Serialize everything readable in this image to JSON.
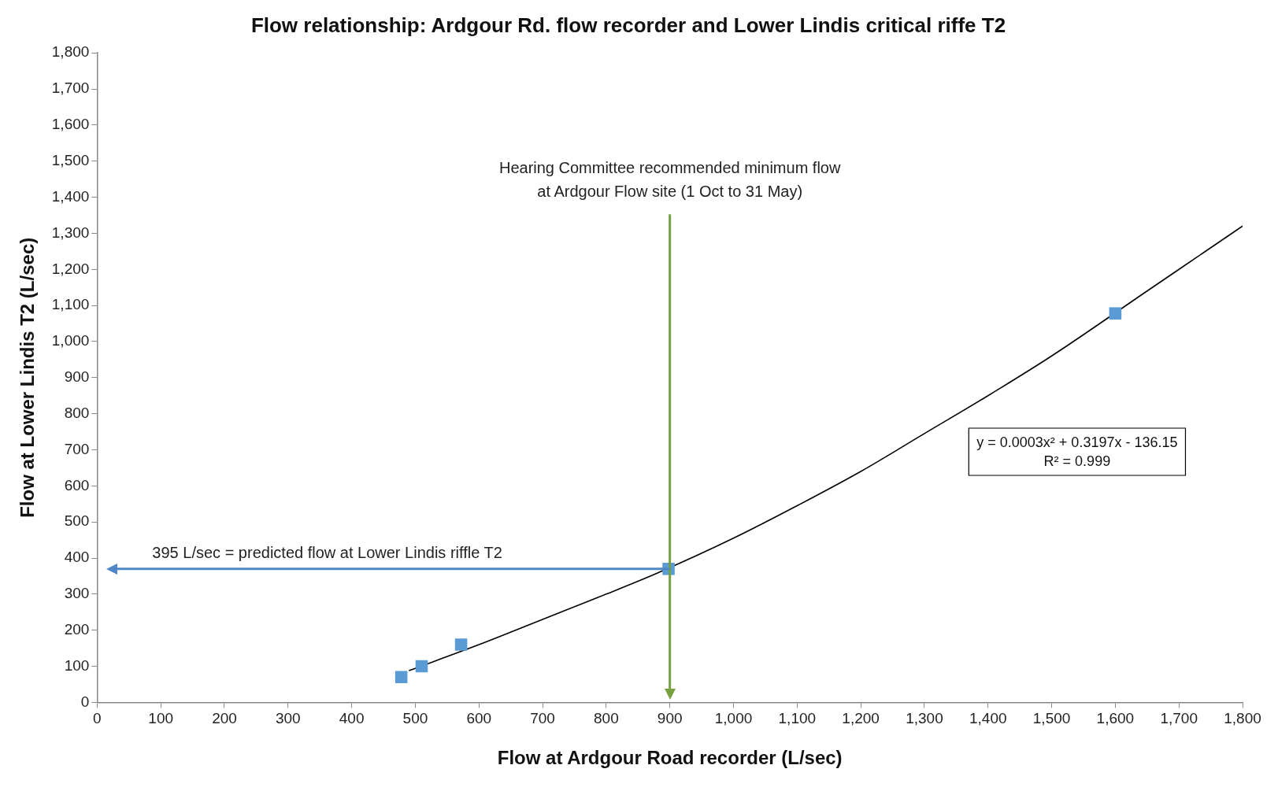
{
  "chart_data": {
    "type": "scatter",
    "title": "Flow relationship: Ardgour Rd. flow recorder and Lower Lindis critical riffe T2",
    "xlabel": "Flow at Ardgour Road recorder (L/sec)",
    "ylabel": "Flow at Lower Lindis T2 (L/sec)",
    "series": [
      {
        "type": "scatter",
        "color": "#5b9bd5",
        "marker": "square",
        "x": [
          478,
          510,
          572,
          898,
          1600
        ],
        "values": [
          70,
          100,
          160,
          370,
          1078
        ]
      },
      {
        "type": "line",
        "color": "#000000",
        "marker": "none",
        "x": [
          490,
          600,
          700,
          800,
          880,
          1000,
          1100,
          1200,
          1300,
          1400,
          1500,
          1650,
          1700,
          1800
        ],
        "values": [
          88,
          160,
          230,
          300,
          358,
          455,
          545,
          640,
          745,
          850,
          960,
          1140,
          1200,
          1320
        ]
      }
    ],
    "xlim": [
      0,
      1800
    ],
    "xticks": [
      {
        "value": 0,
        "label": "0"
      },
      {
        "value": 100,
        "label": "100"
      },
      {
        "value": 200,
        "label": "200"
      },
      {
        "value": 300,
        "label": "300"
      },
      {
        "value": 400,
        "label": "400"
      },
      {
        "value": 500,
        "label": "500"
      },
      {
        "value": 600,
        "label": "600"
      },
      {
        "value": 700,
        "label": "700"
      },
      {
        "value": 800,
        "label": "800"
      },
      {
        "value": 900,
        "label": "900"
      },
      {
        "value": 1000,
        "label": "1,000"
      },
      {
        "value": 1100,
        "label": "1,100"
      },
      {
        "value": 1200,
        "label": "1,200"
      },
      {
        "value": 1300,
        "label": "1,300"
      },
      {
        "value": 1400,
        "label": "1,400"
      },
      {
        "value": 1500,
        "label": "1,500"
      },
      {
        "value": 1600,
        "label": "1,600"
      },
      {
        "value": 1700,
        "label": "1,700"
      },
      {
        "value": 1800,
        "label": "1,800"
      }
    ],
    "ylim": [
      0,
      1800
    ],
    "yticks": [
      {
        "value": 0,
        "label": "0"
      },
      {
        "value": 100,
        "label": "100"
      },
      {
        "value": 200,
        "label": "200"
      },
      {
        "value": 300,
        "label": "300"
      },
      {
        "value": 400,
        "label": "400"
      },
      {
        "value": 500,
        "label": "500"
      },
      {
        "value": 600,
        "label": "600"
      },
      {
        "value": 700,
        "label": "700"
      },
      {
        "value": 800,
        "label": "800"
      },
      {
        "value": 900,
        "label": "900"
      },
      {
        "value": 1000,
        "label": "1,000"
      },
      {
        "value": 1100,
        "label": "1,100"
      },
      {
        "value": 1200,
        "label": "1,200"
      },
      {
        "value": 1300,
        "label": "1,300"
      },
      {
        "value": 1400,
        "label": "1,400"
      },
      {
        "value": 1500,
        "label": "1,500"
      },
      {
        "value": 1600,
        "label": "1,600"
      },
      {
        "value": 1700,
        "label": "1,700"
      },
      {
        "value": 1800,
        "label": "1,800"
      }
    ],
    "ref_lines": [
      {
        "axis": "x",
        "value": 900,
        "label": "Hearing Committee recommended minimum flow\nat Ardgour Flow site (1 Oct to 31 May)",
        "color": "#77a040"
      },
      {
        "axis": "y",
        "value": 370,
        "label": "395 L/sec = predicted flow at Lower Lindis riffle T2",
        "color": "#4f86c6"
      }
    ],
    "annotations": [
      "y = 0.0003x² + 0.3197x - 136.15",
      "R² = 0.999"
    ],
    "grid": false,
    "legend": false
  }
}
